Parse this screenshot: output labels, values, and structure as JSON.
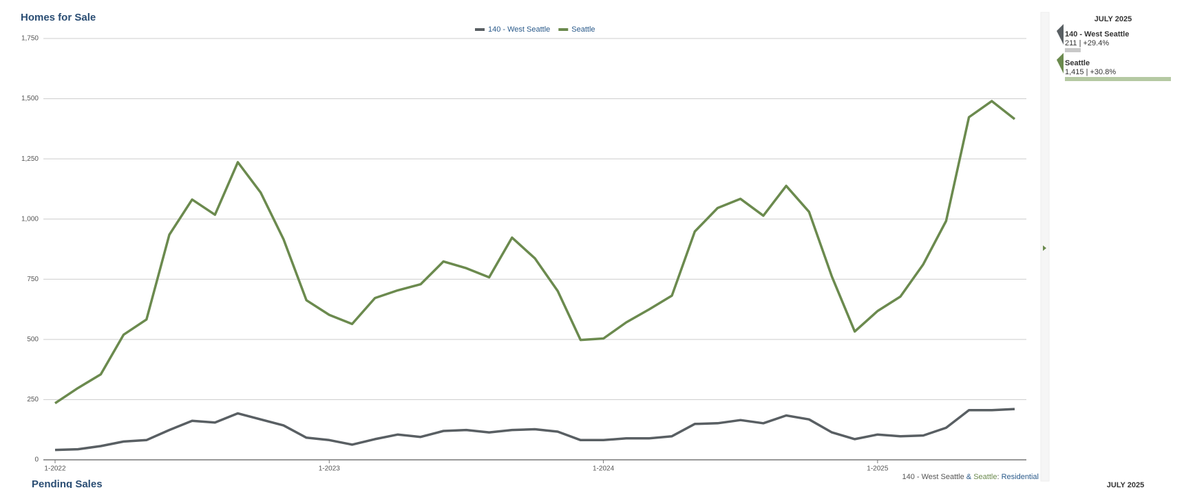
{
  "chart_data": {
    "type": "line",
    "title": "Homes for Sale",
    "categories": [
      "1-2022",
      null,
      null,
      null,
      null,
      null,
      null,
      null,
      null,
      null,
      null,
      null,
      "1-2023",
      null,
      null,
      null,
      null,
      null,
      null,
      null,
      null,
      null,
      null,
      null,
      "1-2024",
      null,
      null,
      null,
      null,
      null,
      null,
      null,
      null,
      null,
      null,
      null,
      "1-2025",
      null,
      null,
      null,
      null,
      null,
      null
    ],
    "series": [
      {
        "name": "140 - West Seattle",
        "color": "#595f63",
        "values": [
          41,
          44,
          57,
          76,
          82,
          124,
          162,
          155,
          193,
          168,
          143,
          92,
          82,
          63,
          86,
          105,
          95,
          120,
          124,
          114,
          124,
          127,
          117,
          82,
          82,
          89,
          89,
          98,
          149,
          152,
          165,
          152,
          184,
          168,
          114,
          86,
          105,
          98,
          101,
          133,
          206,
          206,
          211
        ]
      },
      {
        "name": "Seattle",
        "color": "#6b8a4e",
        "values": [
          235,
          298,
          355,
          520,
          583,
          935,
          1081,
          1018,
          1236,
          1110,
          916,
          663,
          602,
          564,
          672,
          704,
          729,
          824,
          796,
          758,
          923,
          837,
          701,
          498,
          504,
          571,
          625,
          682,
          948,
          1046,
          1084,
          1014,
          1138,
          1030,
          761,
          533,
          618,
          678,
          812,
          992,
          1423,
          1490,
          1415
        ]
      }
    ],
    "ylim": [
      0,
      1750
    ],
    "yticks": [
      0,
      250,
      500,
      750,
      {
        "value": 1000,
        "label": "1,000"
      },
      {
        "value": 1250,
        "label": "1,250"
      },
      {
        "value": 1500,
        "label": "1,500"
      },
      {
        "value": 1750,
        "label": "1,750"
      }
    ],
    "grid": true
  },
  "panel": {
    "title": "JULY 2025",
    "entries": [
      {
        "name": "140 - West Seattle",
        "value": 211,
        "label": "211 | +29.4%"
      },
      {
        "name": "Seattle",
        "value": 1415,
        "label": "1,415 | +30.8%"
      }
    ]
  },
  "footer": {
    "parts": [
      "140 - West Seattle",
      " & ",
      "Seattle",
      ": ",
      "Residential"
    ]
  },
  "next_section": {
    "title": "Pending Sales",
    "panel_title": "JULY 2025"
  }
}
